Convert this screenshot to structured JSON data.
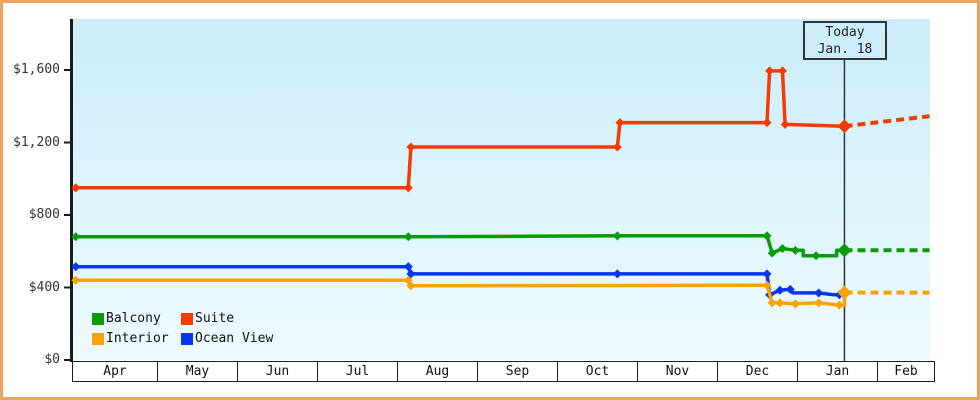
{
  "chart_data": {
    "type": "line",
    "y_axis": {
      "ticks": [
        {
          "label": "$0",
          "value": 0
        },
        {
          "label": "$400",
          "value": 400
        },
        {
          "label": "$800",
          "value": 800
        },
        {
          "label": "$1,200",
          "value": 1200
        },
        {
          "label": "$1,600",
          "value": 1600
        }
      ],
      "range": [
        0,
        1880
      ]
    },
    "x_axis": {
      "months": [
        "Apr",
        "May",
        "Jun",
        "Jul",
        "Aug",
        "Sep",
        "Oct",
        "Nov",
        "Dec",
        "Jan",
        "Feb"
      ]
    },
    "today": {
      "line1": "Today",
      "line2": "Jan. 18",
      "month": "Jan",
      "day": 18
    },
    "legend": [
      {
        "label": "Balcony",
        "color": "#089d08"
      },
      {
        "label": "Suite",
        "color": "#f43b00"
      },
      {
        "label": "Interior",
        "color": "#fba302"
      },
      {
        "label": "Ocean View",
        "color": "#0537ee"
      }
    ],
    "grid": false,
    "legend_position": "bottom-left",
    "series": [
      {
        "name": "Ocean View",
        "color": "#0537ee",
        "points": [
          {
            "m": "Apr",
            "d": 1,
            "v": 515,
            "mk": true
          },
          {
            "m": "Aug",
            "d": 4,
            "v": 515,
            "mk": true
          },
          {
            "m": "Aug",
            "d": 5,
            "v": 475,
            "mk": true
          },
          {
            "m": "Oct",
            "d": 23,
            "v": 475,
            "mk": true
          },
          {
            "m": "Dec",
            "d": 19,
            "v": 475,
            "mk": true
          },
          {
            "m": "Dec",
            "d": 20,
            "v": 360,
            "mk": true
          },
          {
            "m": "Dec",
            "d": 24,
            "v": 385,
            "mk": true
          },
          {
            "m": "Dec",
            "d": 28,
            "v": 390,
            "mk": true
          },
          {
            "m": "Dec",
            "d": 29,
            "v": 370
          },
          {
            "m": "Jan",
            "d": 8,
            "v": 370,
            "mk": true
          },
          {
            "m": "Jan",
            "d": 14,
            "v": 360
          },
          {
            "m": "Jan",
            "d": 16,
            "v": 360,
            "mk": true
          }
        ]
      },
      {
        "name": "Interior",
        "color": "#fba302",
        "points": [
          {
            "m": "Apr",
            "d": 1,
            "v": 440,
            "mk": true
          },
          {
            "m": "Aug",
            "d": 4,
            "v": 440,
            "mk": true
          },
          {
            "m": "Aug",
            "d": 5,
            "v": 410,
            "mk": true
          },
          {
            "m": "Dec",
            "d": 19,
            "v": 412,
            "mk": true
          },
          {
            "m": "Dec",
            "d": 21,
            "v": 315,
            "mk": true
          },
          {
            "m": "Dec",
            "d": 24,
            "v": 315,
            "mk": true
          },
          {
            "m": "Dec",
            "d": 30,
            "v": 310,
            "mk": true
          },
          {
            "m": "Jan",
            "d": 8,
            "v": 315,
            "mk": true
          },
          {
            "m": "Jan",
            "d": 16,
            "v": 303,
            "mk": true
          },
          {
            "m": "Jan",
            "d": 18,
            "v": 303
          },
          {
            "m": "Jan",
            "d": 18,
            "v": 372,
            "mk": true,
            "big": true
          }
        ],
        "projection_end": {
          "m": "Feb",
          "d": 28,
          "v": 372
        }
      },
      {
        "name": "Balcony",
        "color": "#089d08",
        "points": [
          {
            "m": "Apr",
            "d": 1,
            "v": 680,
            "mk": true
          },
          {
            "m": "Aug",
            "d": 4,
            "v": 680,
            "mk": true
          },
          {
            "m": "Oct",
            "d": 23,
            "v": 685,
            "mk": true
          },
          {
            "m": "Dec",
            "d": 19,
            "v": 685,
            "mk": true
          },
          {
            "m": "Dec",
            "d": 21,
            "v": 590,
            "mk": true
          },
          {
            "m": "Dec",
            "d": 25,
            "v": 615,
            "mk": true
          },
          {
            "m": "Dec",
            "d": 30,
            "v": 605,
            "mk": true
          },
          {
            "m": "Jan",
            "d": 2,
            "v": 605
          },
          {
            "m": "Jan",
            "d": 2,
            "v": 575
          },
          {
            "m": "Jan",
            "d": 7,
            "v": 575,
            "mk": true
          },
          {
            "m": "Jan",
            "d": 15,
            "v": 575
          },
          {
            "m": "Jan",
            "d": 15,
            "v": 605
          },
          {
            "m": "Jan",
            "d": 18,
            "v": 605,
            "mk": true,
            "big": true
          }
        ],
        "projection_end": {
          "m": "Feb",
          "d": 28,
          "v": 605
        }
      },
      {
        "name": "Suite",
        "color": "#f43b00",
        "points": [
          {
            "m": "Apr",
            "d": 1,
            "v": 950,
            "mk": true
          },
          {
            "m": "Aug",
            "d": 4,
            "v": 950,
            "mk": true
          },
          {
            "m": "Aug",
            "d": 5,
            "v": 1175,
            "mk": true
          },
          {
            "m": "Oct",
            "d": 23,
            "v": 1175,
            "mk": true
          },
          {
            "m": "Oct",
            "d": 24,
            "v": 1310,
            "mk": true
          },
          {
            "m": "Dec",
            "d": 19,
            "v": 1310,
            "mk": true
          },
          {
            "m": "Dec",
            "d": 20,
            "v": 1595,
            "mk": true
          },
          {
            "m": "Dec",
            "d": 25,
            "v": 1595,
            "mk": true
          },
          {
            "m": "Dec",
            "d": 26,
            "v": 1300,
            "mk": true
          },
          {
            "m": "Jan",
            "d": 18,
            "v": 1290,
            "mk": true,
            "big": true
          }
        ],
        "projection_end": {
          "m": "Feb",
          "d": 28,
          "v": 1345
        }
      }
    ]
  }
}
